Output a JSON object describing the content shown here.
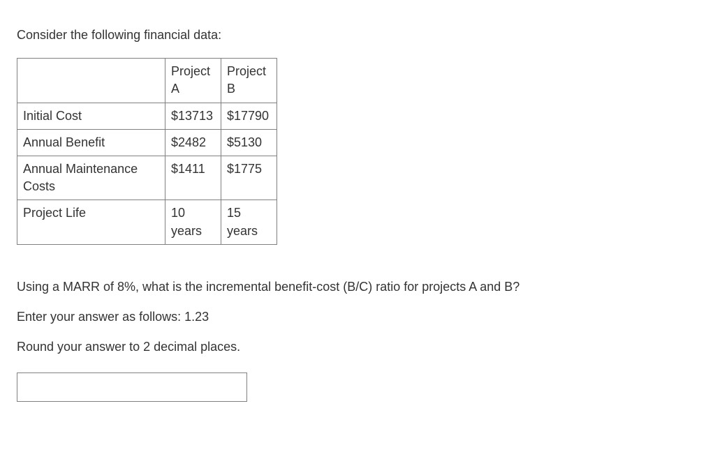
{
  "intro_text": "Consider the following financial data:",
  "table": {
    "header": {
      "blank": "",
      "col_a": "Project A",
      "col_b": "Project B"
    },
    "rows": [
      {
        "label": "Initial Cost",
        "a": "$13713",
        "b": "$17790"
      },
      {
        "label": "Annual Benefit",
        "a": "$2482",
        "b": "$5130"
      },
      {
        "label": "Annual Maintenance Costs",
        "a": "$1411",
        "b": "$1775"
      },
      {
        "label": "Project Life",
        "a": "10 years",
        "b": "15 years"
      }
    ]
  },
  "question": {
    "line1": "Using a MARR of 8%, what is the incremental benefit-cost (B/C) ratio for projects A and B?",
    "line2": "Enter your answer as follows: 1.23",
    "line3": "Round your answer to 2 decimal places."
  },
  "answer_value": ""
}
